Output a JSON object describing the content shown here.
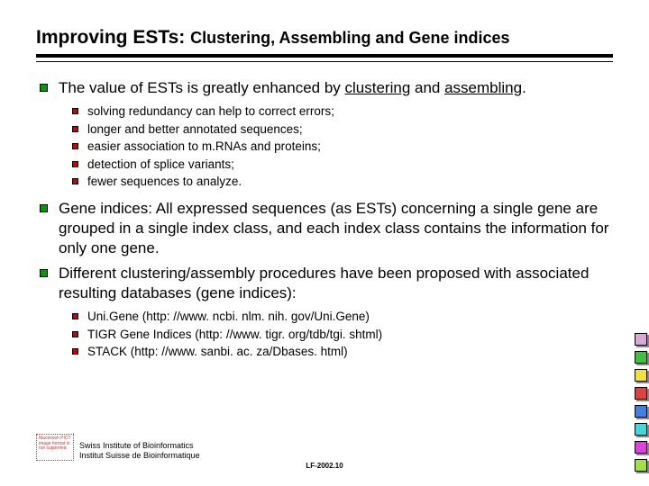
{
  "title_main": "Improving ESTs:",
  "title_sub": "Clustering, Assembling and Gene indices",
  "bullets_l1": [
    {
      "pre": "The value of ESTs is greatly enhanced by ",
      "u1": "clustering",
      "mid": " and ",
      "u2": "assembling",
      "post": ".",
      "sub": [
        "solving redundancy can help to correct errors;",
        "longer and better annotated sequences;",
        "easier association to m.RNAs and proteins;",
        "detection of splice variants;",
        "fewer sequences to analyze."
      ]
    },
    {
      "text": "Gene indices: All expressed sequences (as ESTs) concerning a single gene are grouped in a single index class, and each index class contains the information for only one gene."
    },
    {
      "text": "Different clustering/assembly procedures have been proposed with associated resulting databases (gene indices):",
      "sub": [
        "Uni.Gene (http: //www. ncbi. nlm. nih. gov/Uni.Gene)",
        "TIGR Gene Indices (http: //www. tigr. org/tdb/tgi. shtml)",
        "STACK (http: //www. sanbi. ac. za/Dbases. html)"
      ]
    }
  ],
  "logo_text": "Macintosh PICT image format is not supported",
  "institute_line1": "Swiss Institute of Bioinformatics",
  "institute_line2": "Institut Suisse de Bioinformatique",
  "ref": "LF-2002.10",
  "strip_colors": [
    "#d8a8d8",
    "#40c040",
    "#f0e040",
    "#e04040",
    "#4080e0",
    "#40d8d8",
    "#e040e0",
    "#a0e040"
  ]
}
